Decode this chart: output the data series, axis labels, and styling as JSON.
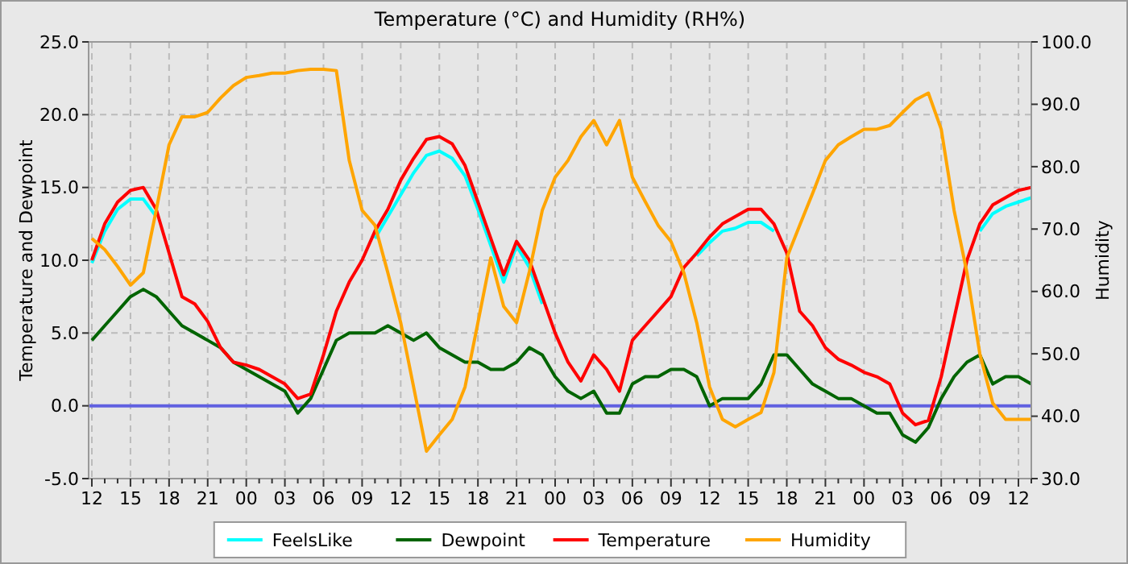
{
  "chart_data": {
    "type": "line",
    "title": "Temperature (°C) and Humidity (RH%)",
    "ylabel": "Temperature and Dewpoint",
    "y2label": "Humidity",
    "categories": [
      "12",
      null,
      null,
      "15",
      null,
      null,
      "18",
      null,
      null,
      "21",
      null,
      null,
      "00",
      null,
      null,
      "03",
      null,
      null,
      "06",
      null,
      null,
      "09",
      null,
      null,
      "12",
      null,
      null,
      "15",
      null,
      null,
      "18",
      null,
      null,
      "21",
      null,
      null,
      "00",
      null,
      null,
      "03",
      null,
      null,
      "06",
      null,
      null,
      "09",
      null,
      null,
      "12",
      null,
      null,
      "15",
      null,
      null,
      "18",
      null,
      null,
      "21",
      null,
      null,
      "00",
      null,
      null,
      "03",
      null,
      null,
      "06",
      null,
      null,
      "09",
      null,
      null,
      "12",
      null
    ],
    "ylim": [
      -5,
      25
    ],
    "yticks": [
      {
        "value": -5,
        "label": "-5.0"
      },
      {
        "value": 0,
        "label": "0.0"
      },
      {
        "value": 5,
        "label": "5.0"
      },
      {
        "value": 10,
        "label": "10.0"
      },
      {
        "value": 15,
        "label": "15.0"
      },
      {
        "value": 20,
        "label": "20.0"
      },
      {
        "value": 25,
        "label": "25.0"
      }
    ],
    "y2lim": [
      30,
      100
    ],
    "y2ticks": [
      {
        "value": 30,
        "label": "30.0"
      },
      {
        "value": 40,
        "label": "40.0"
      },
      {
        "value": 50,
        "label": "50.0"
      },
      {
        "value": 60,
        "label": "60.0"
      },
      {
        "value": 70,
        "label": "70.0"
      },
      {
        "value": 80,
        "label": "80.0"
      },
      {
        "value": 90,
        "label": "90.0"
      },
      {
        "value": 100,
        "label": "100.0"
      }
    ],
    "grid": true,
    "legend": "bottom",
    "line_style": "solid",
    "ref_lines": [
      {
        "axis": "y",
        "value": 0,
        "color": "#6060e0"
      }
    ],
    "series": [
      {
        "name": "FeelsLike",
        "color": "#00ffff",
        "values": [
          9.8,
          12.0,
          13.5,
          14.2,
          14.2,
          13.0,
          null,
          null,
          null,
          null,
          null,
          null,
          null,
          null,
          null,
          null,
          null,
          null,
          null,
          null,
          null,
          null,
          11.5,
          13.0,
          14.5,
          16.0,
          17.2,
          17.5,
          17.0,
          15.8,
          13.5,
          11.0,
          8.5,
          11.0,
          9.5,
          7.0,
          null,
          null,
          null,
          null,
          null,
          null,
          null,
          null,
          null,
          null,
          null,
          10.3,
          11.2,
          12.0,
          12.2,
          12.6,
          12.6,
          12.0,
          null,
          null,
          null,
          null,
          null,
          null,
          null,
          null,
          null,
          null,
          null,
          null,
          null,
          null,
          null,
          12.0,
          13.2,
          13.7,
          14.0,
          14.3
        ]
      },
      {
        "name": "Dewpoint",
        "color": "#006400",
        "values": [
          4.5,
          5.5,
          6.5,
          7.5,
          8.0,
          7.5,
          6.5,
          5.5,
          5.0,
          4.5,
          4.0,
          3.0,
          2.5,
          2.0,
          1.5,
          1.0,
          -0.5,
          0.5,
          2.5,
          4.5,
          5.0,
          5.0,
          5.0,
          5.5,
          5.0,
          4.5,
          5.0,
          4.0,
          3.5,
          3.0,
          3.0,
          2.5,
          2.5,
          3.0,
          4.0,
          3.5,
          2.0,
          1.0,
          0.5,
          1.0,
          -0.5,
          -0.5,
          1.5,
          2.0,
          2.0,
          2.5,
          2.5,
          2.0,
          0.0,
          0.5,
          0.5,
          0.5,
          1.5,
          3.5,
          3.5,
          2.5,
          1.5,
          1.0,
          0.5,
          0.5,
          0.0,
          -0.5,
          -0.5,
          -2.0,
          -2.5,
          -1.5,
          0.5,
          2.0,
          3.0,
          3.5,
          1.5,
          2.0,
          2.0,
          1.5
        ]
      },
      {
        "name": "Temperature",
        "color": "#ff0000",
        "values": [
          10.0,
          12.5,
          14.0,
          14.8,
          15.0,
          13.5,
          10.5,
          7.5,
          7.0,
          5.8,
          4.0,
          3.0,
          2.8,
          2.5,
          2.0,
          1.5,
          0.5,
          0.8,
          3.5,
          6.5,
          8.5,
          10.0,
          12.0,
          13.5,
          15.5,
          17.0,
          18.3,
          18.5,
          18.0,
          16.5,
          14.0,
          11.5,
          9.0,
          11.3,
          10.0,
          7.5,
          5.0,
          3.0,
          1.7,
          3.5,
          2.5,
          1.0,
          4.5,
          5.5,
          6.5,
          7.5,
          9.5,
          10.5,
          11.6,
          12.5,
          13.0,
          13.5,
          13.5,
          12.5,
          10.5,
          6.5,
          5.5,
          4.0,
          3.2,
          2.8,
          2.3,
          2.0,
          1.5,
          -0.5,
          -1.3,
          -1.0,
          2.0,
          6.0,
          10.0,
          12.5,
          13.8,
          14.3,
          14.8,
          15.0
        ]
      },
      {
        "name": "Humidity",
        "color": "#ffa500",
        "axis": "y2",
        "values": [
          68.5,
          66.7,
          64,
          61,
          63,
          73,
          83.5,
          88,
          88,
          88.7,
          91,
          93,
          94.3,
          94.6,
          95,
          95,
          95.4,
          95.6,
          95.6,
          95.4,
          81,
          73,
          70.6,
          63,
          55,
          44.7,
          34.4,
          37,
          39.5,
          44.7,
          55,
          65.4,
          57.6,
          55,
          63.2,
          73,
          78.3,
          81,
          84.8,
          87.4,
          83.5,
          87.4,
          78.3,
          74.4,
          70.6,
          68,
          63,
          55,
          44.7,
          39.5,
          38.3,
          39.5,
          40.6,
          47,
          65.4,
          70.6,
          75.7,
          81,
          83.5,
          84.8,
          86,
          86,
          86.6,
          88.7,
          90.7,
          91.8,
          86,
          73,
          63,
          50,
          42.1,
          39.5,
          39.5,
          39.5
        ]
      }
    ]
  }
}
